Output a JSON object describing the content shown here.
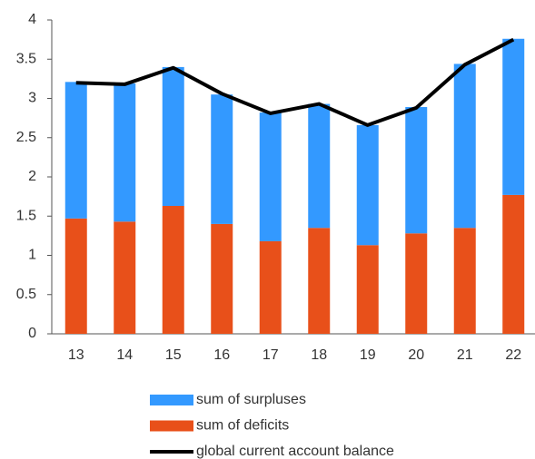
{
  "chart_data": {
    "type": "bar",
    "categories": [
      "13",
      "14",
      "15",
      "16",
      "17",
      "18",
      "19",
      "20",
      "21",
      "22"
    ],
    "series": [
      {
        "name": "sum of surpluses",
        "color": "#3399ff",
        "type": "bar",
        "values": [
          1.74,
          1.76,
          1.77,
          1.65,
          1.64,
          1.58,
          1.53,
          1.61,
          2.09,
          1.99
        ]
      },
      {
        "name": "sum of deficits",
        "color": "#e8501a",
        "type": "bar",
        "values": [
          1.47,
          1.43,
          1.63,
          1.4,
          1.18,
          1.35,
          1.13,
          1.28,
          1.35,
          1.77
        ]
      },
      {
        "name": "global current account balance",
        "color": "#000000",
        "type": "line",
        "values": [
          3.2,
          3.18,
          3.39,
          3.06,
          2.81,
          2.93,
          2.66,
          2.88,
          3.43,
          3.75
        ]
      }
    ],
    "stacked": true,
    "ylim": [
      0,
      4
    ],
    "yticks": [
      0,
      0.5,
      1,
      1.5,
      2,
      2.5,
      3,
      3.5,
      4
    ],
    "grid": false,
    "legend": "bottom"
  }
}
